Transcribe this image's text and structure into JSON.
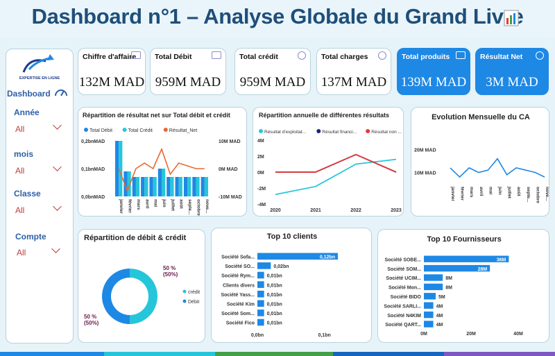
{
  "header": {
    "title": "Dashboard n°1 – Analyse Globale du Grand Livre"
  },
  "sidebar": {
    "logo_text": "EXPERTISE EN LIGNE",
    "dashboard_label": "Dashboard",
    "filters": [
      {
        "label": "Année",
        "value": "All"
      },
      {
        "label": "mois",
        "value": "All"
      },
      {
        "label": "Classe",
        "value": "All"
      },
      {
        "label": "Compte",
        "value": "All"
      }
    ]
  },
  "kpis": [
    {
      "label": "Chiffre d'affaire",
      "value": "132M MAD"
    },
    {
      "label": "Total Débit",
      "value": "959M MAD"
    },
    {
      "label": "Total crédit",
      "value": "959M MAD"
    },
    {
      "label": "Total charges",
      "value": "137M MAD"
    },
    {
      "label": "Total produits",
      "value": "139M MAD"
    },
    {
      "label": "Résultat Net",
      "value": "3M MAD"
    }
  ],
  "colors": {
    "accent": "#1e88e5",
    "title": "#1f4e79",
    "debit": "#1e88e5",
    "credit": "#26c6da",
    "resultat": "#e8692e",
    "navy": "#1a237e",
    "red": "#e53935"
  },
  "chart_data": [
    {
      "type": "bar",
      "title": "Répartition de résultat net sur Total débit et crédit",
      "legend": [
        "Total Débit",
        "Total Crédit",
        "Résultat_Net"
      ],
      "categories": [
        "janvier",
        "février",
        "mars",
        "avril",
        "mai",
        "juin",
        "juillet",
        "août",
        "septe...",
        "octobre",
        "nove..."
      ],
      "series": [
        {
          "name": "Total Débit",
          "values": [
            0.2,
            0.09,
            0.07,
            0.07,
            0.07,
            0.1,
            0.07,
            0.07,
            0.07,
            0.07,
            0.07
          ]
        },
        {
          "name": "Total Crédit",
          "values": [
            0.2,
            0.09,
            0.07,
            0.07,
            0.07,
            0.1,
            0.07,
            0.07,
            0.07,
            0.07,
            0.07
          ]
        },
        {
          "name": "Résultat_Net",
          "values": [
            0,
            -8,
            0,
            2,
            0,
            7,
            -2,
            2,
            1,
            0,
            0
          ]
        }
      ],
      "y_left_ticks": [
        "0,2bnMAD",
        "0,1bnMAD",
        "0,0bnMAD"
      ],
      "y_right_ticks": [
        "10M MAD",
        "0M MAD",
        "-10M MAD"
      ],
      "ylim_left": [
        0,
        0.2
      ],
      "ylim_right": [
        -10,
        10
      ]
    },
    {
      "type": "line",
      "title": "Répartition annuelle de différentes résultats",
      "legend": [
        "Résultat d'exploitat...",
        "Résultat financi...",
        "Résultat non ..."
      ],
      "x": [
        "2020",
        "2021",
        "2022",
        "2023"
      ],
      "y_ticks": [
        "4M",
        "2M",
        "0M",
        "-2M",
        "-4M"
      ],
      "ylim": [
        -4,
        4
      ],
      "series": [
        {
          "name": "Résultat d'exploitat...",
          "values": [
            -2.8,
            -1.8,
            1.0,
            1.6
          ]
        },
        {
          "name": "Résultat financi...",
          "values": [
            0,
            0,
            2.2,
            0
          ]
        },
        {
          "name": "Résultat non ...",
          "values": [
            0,
            0,
            2.2,
            0
          ]
        }
      ]
    },
    {
      "type": "line",
      "title": "Evolution Mensuelle du CA",
      "categories": [
        "janvier",
        "février",
        "mars",
        "avril",
        "mai",
        "juin",
        "juillet",
        "août",
        "septe...",
        "octobre",
        "nove..."
      ],
      "y_ticks": [
        "20M MAD",
        "10M MAD"
      ],
      "ylim": [
        5,
        25
      ],
      "values": [
        12,
        8,
        12,
        10,
        11,
        16,
        9,
        12,
        11,
        10,
        8
      ]
    },
    {
      "type": "pie",
      "title": "Répartition de débit & crédit",
      "labels": [
        "crédit",
        "Débit"
      ],
      "values": [
        50,
        50
      ],
      "slice_labels": [
        "50 %\n(50%)",
        "50 %\n(50%)"
      ]
    },
    {
      "type": "bar",
      "title": "Top 10 clients",
      "categories": [
        "Société Sofa...",
        "Société SO...",
        "Société Rym...",
        "Clients divers",
        "Société Yass...",
        "Société Kim",
        "Société Som...",
        "Société Fico"
      ],
      "values": [
        0.12,
        0.02,
        0.01,
        0.01,
        0.01,
        0.01,
        0.01,
        0.01
      ],
      "data_labels": [
        "0,12bn",
        "0,02bn",
        "0,01bn",
        "0,01bn",
        "0,01bn",
        "0,01bn",
        "0,01bn",
        "0,01bn"
      ],
      "x_ticks": [
        "0,0bn",
        "0,1bn"
      ],
      "xlim": [
        0,
        0.12
      ]
    },
    {
      "type": "bar",
      "title": "Top 10 Fournisseurs",
      "categories": [
        "Société SOBE...",
        "Société SOM...",
        "Société UCIM...",
        "Société Mon...",
        "Société BIDO",
        "Société SARLI...",
        "Société N4KIM",
        "Société QART..."
      ],
      "values": [
        36,
        28,
        8,
        8,
        5,
        4,
        4,
        4
      ],
      "data_labels": [
        "36M",
        "28M",
        "8M",
        "8M",
        "5M",
        "4M",
        "4M",
        "4M"
      ],
      "x_ticks": [
        "0M",
        "20M",
        "40M"
      ],
      "xlim": [
        0,
        40
      ]
    }
  ]
}
